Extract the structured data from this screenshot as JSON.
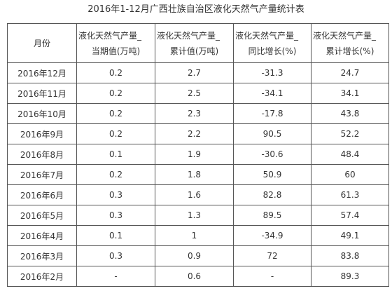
{
  "title": "2016年1-12月广西壮族自治区液化天然气产量统计表",
  "table": {
    "headers": [
      [
        "月份"
      ],
      [
        "液化天然气产量_",
        "当期值(万吨)"
      ],
      [
        "液化天然气产量_",
        "累计值(万吨)"
      ],
      [
        "液化天然气产量_",
        "同比增长(%)"
      ],
      [
        "液化天然气产量_",
        "累计增长(%)"
      ]
    ],
    "rows": [
      [
        "2016年12月",
        "0.2",
        "2.7",
        "-31.3",
        "24.7"
      ],
      [
        "2016年11月",
        "0.2",
        "2.5",
        "-34.1",
        "34.1"
      ],
      [
        "2016年10月",
        "0.2",
        "2.3",
        "-17.8",
        "43.8"
      ],
      [
        "2016年9月",
        "0.2",
        "2.2",
        "90.5",
        "52.2"
      ],
      [
        "2016年8月",
        "0.1",
        "1.9",
        "-30.6",
        "48.4"
      ],
      [
        "2016年7月",
        "0.2",
        "1.8",
        "50.9",
        "60"
      ],
      [
        "2016年6月",
        "0.3",
        "1.6",
        "82.8",
        "61.3"
      ],
      [
        "2016年5月",
        "0.3",
        "1.3",
        "89.5",
        "57.4"
      ],
      [
        "2016年4月",
        "0.1",
        "1",
        "-34.9",
        "49.1"
      ],
      [
        "2016年3月",
        "0.3",
        "0.9",
        "72",
        "83.8"
      ],
      [
        "2016年2月",
        "-",
        "0.6",
        "-",
        "89.3"
      ]
    ]
  }
}
